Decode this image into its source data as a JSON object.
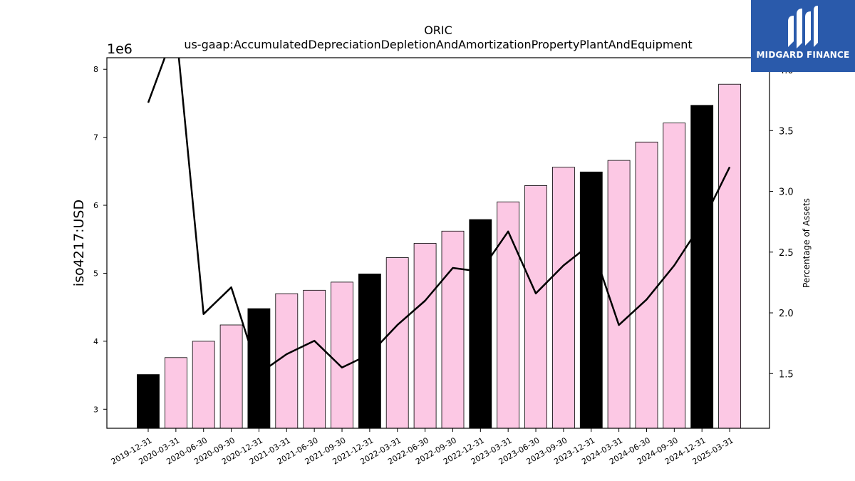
{
  "chart_data": {
    "type": "bar",
    "title": "ORIC",
    "subtitle": "us-gaap:AccumulatedDepreciationDepletionAndAmortizationPropertyPlantAndEquipment",
    "ylabel": "iso4217:USD",
    "y_offset_label": "1e6",
    "y2label": "Percentage of Assets",
    "ylim": [
      2.72,
      8.17
    ],
    "y2lim": [
      1.05,
      4.1
    ],
    "yticks": [
      3,
      4,
      5,
      6,
      7,
      8
    ],
    "y2ticks": [
      "1.5",
      "2.0",
      "2.5",
      "3.0",
      "3.5",
      "4.0"
    ],
    "categories": [
      "2019-12-31",
      "2020-03-31",
      "2020-06-30",
      "2020-09-30",
      "2020-12-31",
      "2021-03-31",
      "2021-06-30",
      "2021-09-30",
      "2021-12-31",
      "2022-03-31",
      "2022-06-30",
      "2022-09-30",
      "2022-12-31",
      "2023-03-31",
      "2023-06-30",
      "2023-09-30",
      "2023-12-31",
      "2024-03-31",
      "2024-06-30",
      "2024-09-30",
      "2024-12-31",
      "2025-03-31"
    ],
    "series": [
      {
        "type": "bar",
        "values": [
          3.51,
          3.76,
          4.0,
          4.24,
          4.48,
          4.7,
          4.75,
          4.87,
          4.99,
          5.23,
          5.44,
          5.62,
          5.79,
          6.05,
          6.29,
          6.56,
          6.49,
          6.66,
          6.93,
          7.21,
          7.47,
          7.78
        ],
        "annual_flags": [
          true,
          false,
          false,
          false,
          true,
          false,
          false,
          false,
          true,
          false,
          false,
          false,
          true,
          false,
          false,
          false,
          true,
          false,
          false,
          false,
          true,
          false
        ]
      },
      {
        "type": "line",
        "axis": "right",
        "values": [
          3.73,
          4.35,
          1.99,
          2.21,
          1.5,
          1.66,
          1.77,
          1.55,
          1.66,
          1.9,
          2.1,
          2.37,
          2.34,
          2.67,
          2.16,
          2.39,
          2.57,
          1.9,
          2.11,
          2.39,
          2.74,
          3.2
        ]
      }
    ],
    "colors": {
      "annual_bar": "#000000",
      "quarter_bar": "#fcc8e4",
      "line": "#000000",
      "bar_edge": "#000000"
    },
    "grid": false,
    "legend": "none"
  },
  "logo": {
    "text": "MIDGARD FINANCE",
    "icon": "midgard-logo-icon"
  }
}
